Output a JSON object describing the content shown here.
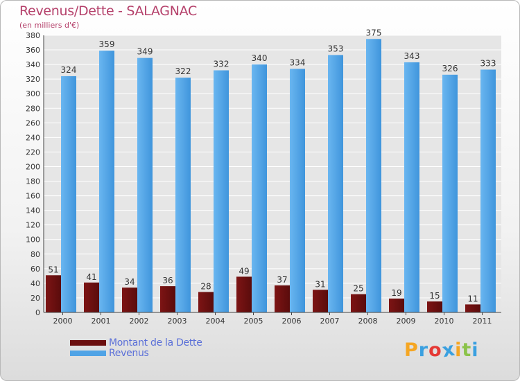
{
  "title": "Revenus/Dette - SALAGNAC",
  "subtitle": "(en milliers d'€)",
  "colors": {
    "debt": "#6b0f0f",
    "revenue": "#4fa3e6",
    "title": "#b5416b",
    "legend_text": "#5a6fd8"
  },
  "legend": {
    "debt_label": "Montant de la Dette",
    "revenue_label": "Revenus"
  },
  "logo": {
    "text": "Proxiti",
    "letters": [
      "P",
      "r",
      "o",
      "x",
      "i",
      "t",
      "i"
    ],
    "letter_colors": [
      "#f5a623",
      "#3aa0e0",
      "#e53935",
      "#3aa0e0",
      "#f5a623",
      "#8bc34a",
      "#3aa0e0"
    ]
  },
  "chart_data": {
    "type": "bar",
    "categories": [
      "2000",
      "2001",
      "2002",
      "2003",
      "2004",
      "2005",
      "2006",
      "2007",
      "2008",
      "2009",
      "2010",
      "2011"
    ],
    "series": [
      {
        "name": "Montant de la Dette",
        "values": [
          51,
          41,
          34,
          36,
          28,
          49,
          37,
          31,
          25,
          19,
          15,
          11
        ]
      },
      {
        "name": "Revenus",
        "values": [
          324,
          359,
          349,
          322,
          332,
          340,
          334,
          353,
          375,
          343,
          326,
          333
        ]
      }
    ],
    "ylim": [
      0,
      380
    ],
    "ytick_step": 20,
    "grid": true,
    "legend_position": "bottom-left",
    "data_labels": true
  }
}
